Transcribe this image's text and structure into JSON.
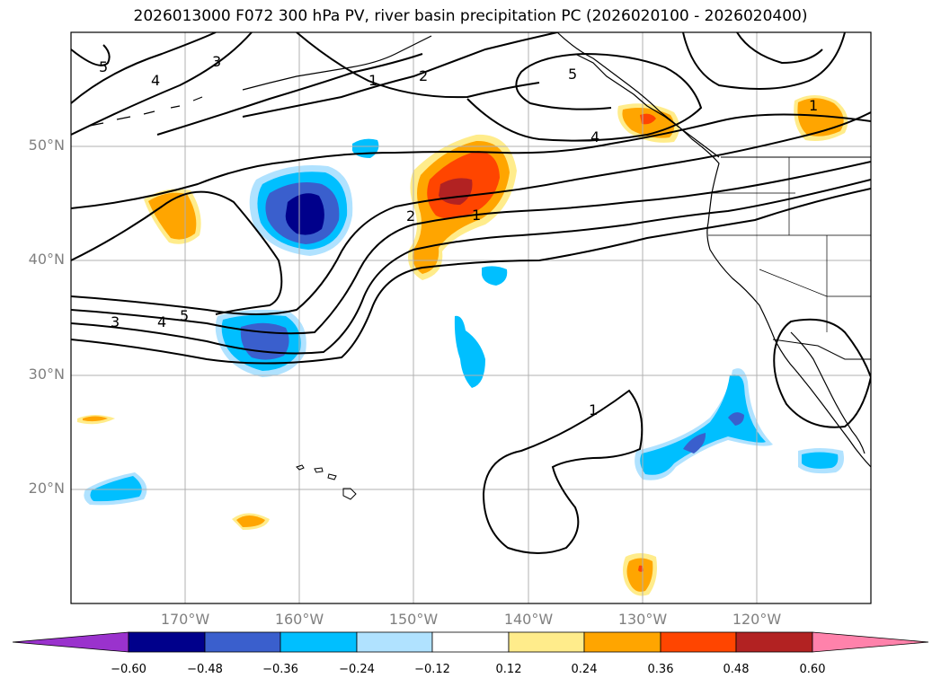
{
  "title": "2026013000 F072 300 hPa PV, river basin precipitation PC (2026020100 - 2026020400)",
  "map": {
    "lon_range": [
      -180,
      -110
    ],
    "lat_range": [
      10,
      60
    ],
    "lat_labels": [
      "50°N",
      "40°N",
      "30°N",
      "20°N"
    ],
    "lon_labels": [
      "170°W",
      "160°W",
      "150°W",
      "140°W",
      "130°W",
      "120°W"
    ],
    "contour_labels": [
      "5",
      "4",
      "3",
      "1",
      "2",
      "5",
      "4",
      "2",
      "1",
      "3",
      "4",
      "5",
      "1",
      "1"
    ]
  },
  "colorbar": {
    "ticks": [
      "−0.60",
      "−0.48",
      "−0.36",
      "−0.24",
      "−0.12",
      "0.12",
      "0.24",
      "0.36",
      "0.48",
      "0.60"
    ],
    "colors": [
      "#9a32cd",
      "#00008b",
      "#3a5fcd",
      "#00bfff",
      "#b0e2ff",
      "#ffffff",
      "#ffec8b",
      "#ffa500",
      "#ff4500",
      "#b22222",
      "#ff82ab"
    ]
  }
}
